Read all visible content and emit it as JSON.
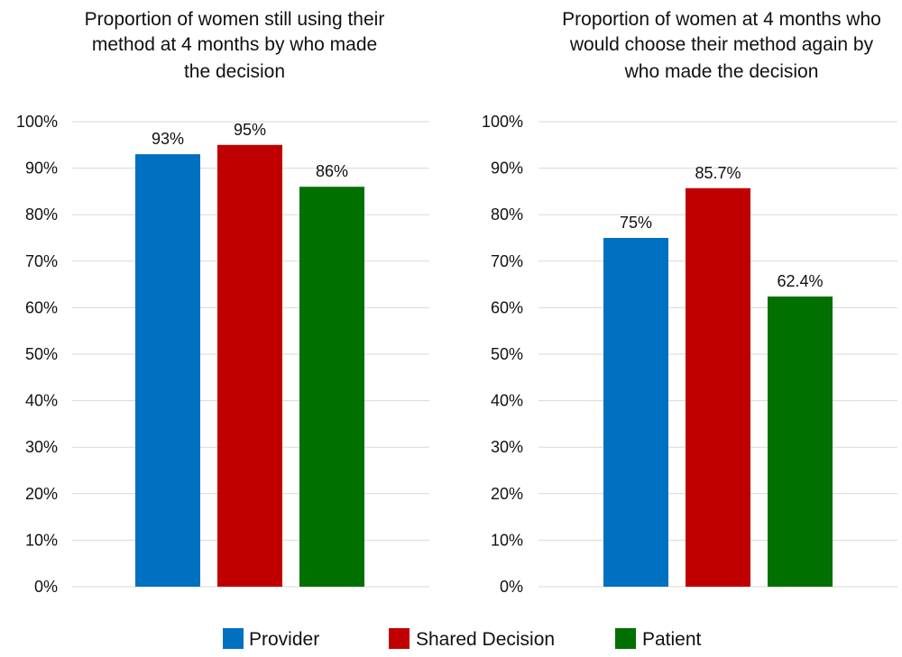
{
  "chart_data": [
    {
      "type": "bar",
      "title": "Proportion of women still using their method at 4 months by who made the decision",
      "title_lines": [
        "Proportion of women still using their",
        "method at 4 months by who made",
        "the decision"
      ],
      "categories": [
        "Provider",
        "Shared Decision",
        "Patient"
      ],
      "values": [
        93,
        95,
        86
      ],
      "value_labels": [
        "93%",
        "95%",
        "86%"
      ],
      "colors": [
        "#0070C0",
        "#C00000",
        "#007000"
      ],
      "ylim": [
        0,
        100
      ],
      "yticks": [
        "0%",
        "10%",
        "20%",
        "30%",
        "40%",
        "50%",
        "60%",
        "70%",
        "80%",
        "90%",
        "100%"
      ],
      "xlabel": "",
      "ylabel": "",
      "grid": true
    },
    {
      "type": "bar",
      "title": "Proportion of women at 4 months who would choose their method again by who made the decision",
      "title_lines": [
        "Proportion of women at 4 months who",
        "would choose their method again by",
        "who made the decision"
      ],
      "categories": [
        "Provider",
        "Shared Decision",
        "Patient"
      ],
      "values": [
        75,
        85.7,
        62.4
      ],
      "value_labels": [
        "75%",
        "85.7%",
        "62.4%"
      ],
      "colors": [
        "#0070C0",
        "#C00000",
        "#007000"
      ],
      "ylim": [
        0,
        100
      ],
      "yticks": [
        "0%",
        "10%",
        "20%",
        "30%",
        "40%",
        "50%",
        "60%",
        "70%",
        "80%",
        "90%",
        "100%"
      ],
      "xlabel": "",
      "ylabel": "",
      "grid": true
    }
  ],
  "legend": {
    "placement": "bottom",
    "items": [
      {
        "label": "Provider",
        "color": "#0070C0"
      },
      {
        "label": "Shared Decision",
        "color": "#C00000"
      },
      {
        "label": "Patient",
        "color": "#007000"
      }
    ]
  }
}
